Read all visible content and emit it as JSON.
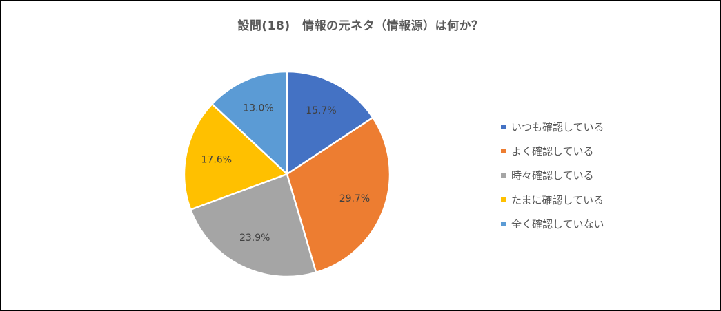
{
  "chart_data": {
    "type": "pie",
    "title": "設問(18)　情報の元ネタ（情報源）は何か？",
    "categories": [
      "いつも確認している",
      "よく確認している",
      "時々確認している",
      "たまに確認している",
      "全く確認していない"
    ],
    "values": [
      15.7,
      29.7,
      23.9,
      17.6,
      13.0
    ],
    "value_labels": [
      "15.7%",
      "29.7%",
      "23.9%",
      "17.6%",
      "13.0%"
    ],
    "colors": [
      "#4472C4",
      "#ED7D31",
      "#A5A5A5",
      "#FFC000",
      "#5B9BD5"
    ],
    "start": "12 o'clock",
    "direction": "clockwise",
    "legend_position": "right"
  }
}
